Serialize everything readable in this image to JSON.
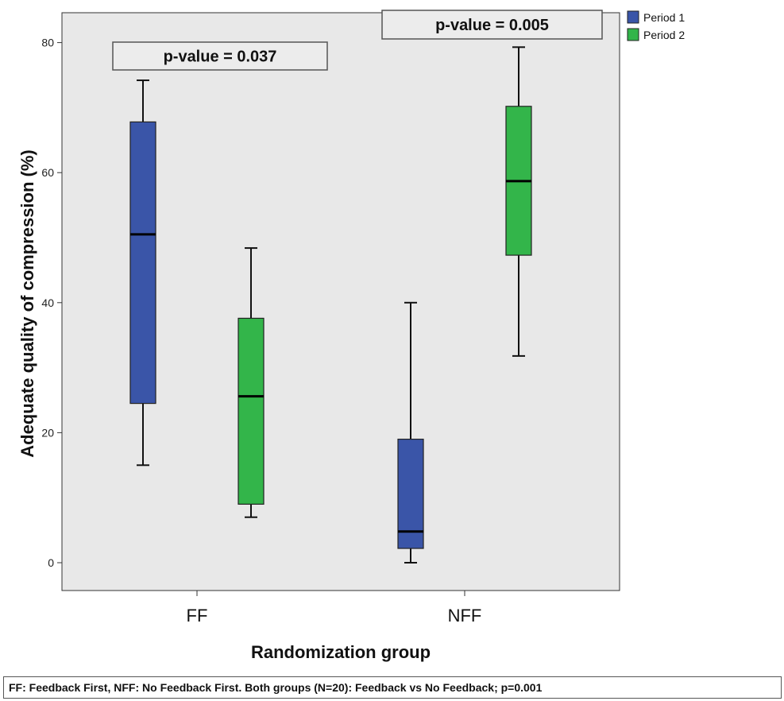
{
  "chart_data": {
    "type": "box",
    "categories": [
      "FF",
      "NFF"
    ],
    "xlabel": "Randomization group",
    "ylabel": "Adequate quality of compression (%)",
    "ylim": [
      -4,
      85
    ],
    "yticks": [
      0,
      20,
      40,
      60,
      80
    ],
    "grid": false,
    "legend": {
      "placement": "top-right",
      "entries": [
        "Period 1",
        "Period 2"
      ]
    },
    "series": [
      {
        "name": "Period 1",
        "color": "#3a55a8",
        "boxes": [
          {
            "category": "FF",
            "min": 15,
            "q1": 24.5,
            "median": 50.5,
            "q3": 67.8,
            "max": 74.2
          },
          {
            "category": "NFF",
            "min": 0,
            "q1": 2.2,
            "median": 4.8,
            "q3": 19,
            "max": 40
          }
        ]
      },
      {
        "name": "Period 2",
        "color": "#33b54a",
        "boxes": [
          {
            "category": "FF",
            "min": 7,
            "q1": 9,
            "median": 25.6,
            "q3": 37.6,
            "max": 48.4
          },
          {
            "category": "NFF",
            "min": 31.8,
            "q1": 47.3,
            "median": 58.7,
            "q3": 70.2,
            "max": 79.3
          }
        ]
      }
    ],
    "annotations": [
      {
        "category": "FF",
        "text": "p-value = 0.037"
      },
      {
        "category": "NFF",
        "text": "p-value = 0.005"
      }
    ]
  },
  "footnote": "FF: Feedback First, NFF: No Feedback First. Both groups (N=20): Feedback vs No Feedback; p=0.001",
  "colors": {
    "plot_background": "#e8e8e8",
    "whisker": "#111111"
  }
}
